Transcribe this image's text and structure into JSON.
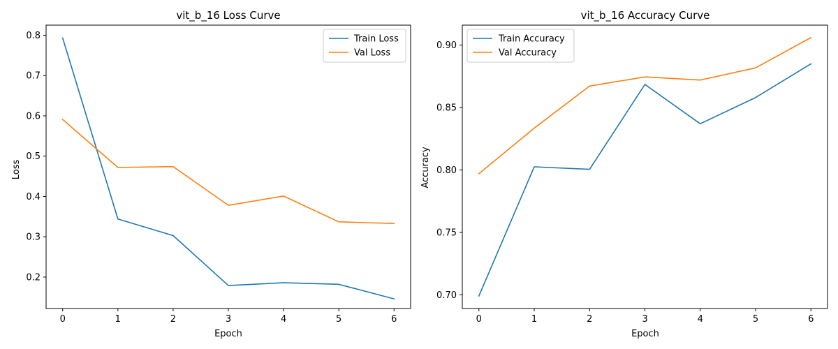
{
  "chart_data": [
    {
      "type": "line",
      "title": "vit_b_16 Loss Curve",
      "xlabel": "Epoch",
      "ylabel": "Loss",
      "x": [
        0,
        1,
        2,
        3,
        4,
        5,
        6
      ],
      "xlim": [
        -0.3,
        6.3
      ],
      "ylim": [
        0.122,
        0.825
      ],
      "xticks": [
        "0",
        "1",
        "2",
        "3",
        "4",
        "5",
        "6"
      ],
      "yticks": [
        "0.2",
        "0.3",
        "0.4",
        "0.5",
        "0.6",
        "0.7",
        "0.8"
      ],
      "grid": false,
      "legend_position": "upper right",
      "series": [
        {
          "name": "Train Loss",
          "color": "#1f77b4",
          "values": [
            0.793,
            0.344,
            0.303,
            0.179,
            0.186,
            0.182,
            0.146
          ]
        },
        {
          "name": "Val Loss",
          "color": "#ff7f0e",
          "values": [
            0.591,
            0.472,
            0.474,
            0.378,
            0.401,
            0.337,
            0.333
          ]
        }
      ]
    },
    {
      "type": "line",
      "title": "vit_b_16 Accuracy Curve",
      "xlabel": "Epoch",
      "ylabel": "Accuracy",
      "x": [
        0,
        1,
        2,
        3,
        4,
        5,
        6
      ],
      "xlim": [
        -0.3,
        6.3
      ],
      "ylim": [
        0.689,
        0.916
      ],
      "xticks": [
        "0",
        "1",
        "2",
        "3",
        "4",
        "5",
        "6"
      ],
      "yticks": [
        "0.70",
        "0.75",
        "0.80",
        "0.85",
        "0.90"
      ],
      "grid": false,
      "legend_position": "upper left",
      "series": [
        {
          "name": "Train Accuracy",
          "color": "#1f77b4",
          "values": [
            0.699,
            0.8025,
            0.8005,
            0.8685,
            0.837,
            0.858,
            0.885
          ]
        },
        {
          "name": "Val Accuracy",
          "color": "#ff7f0e",
          "values": [
            0.797,
            0.8335,
            0.8672,
            0.8745,
            0.872,
            0.8818,
            0.906
          ]
        }
      ]
    }
  ]
}
